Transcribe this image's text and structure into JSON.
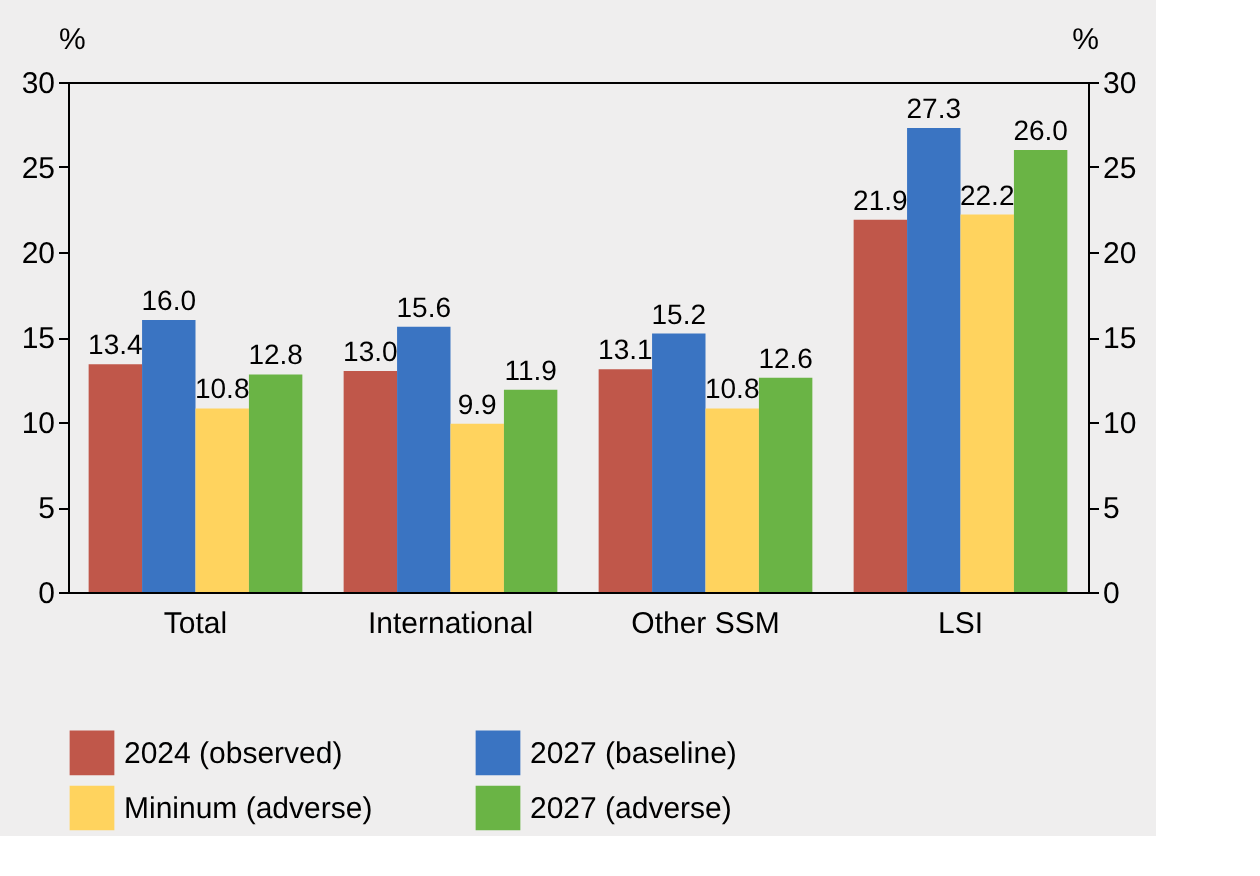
{
  "chart_data": {
    "type": "bar",
    "categories": [
      "Total",
      "International",
      "Other SSM",
      "LSI"
    ],
    "series": [
      {
        "name": "2024 (observed)",
        "color": "#c0574a",
        "values": [
          13.4,
          13.0,
          13.1,
          21.9
        ],
        "value_labels": [
          "13.4",
          "13.0",
          "13.1",
          "21.9"
        ]
      },
      {
        "name": "2027 (baseline)",
        "color": "#3a74c2",
        "values": [
          16.0,
          15.6,
          15.2,
          27.3
        ],
        "value_labels": [
          "16.0",
          "15.6",
          "15.2",
          "27.3"
        ]
      },
      {
        "name": "Mininum (adverse)",
        "color": "#ffd35e",
        "values": [
          10.8,
          9.9,
          10.8,
          22.2
        ],
        "value_labels": [
          "10.8",
          "9.9",
          "10.8",
          "22.2"
        ]
      },
      {
        "name": "2027 (adverse)",
        "color": "#6ab445",
        "values": [
          12.8,
          11.9,
          12.6,
          26.0
        ],
        "value_labels": [
          "12.8",
          "11.9",
          "12.6",
          "26.0"
        ]
      }
    ],
    "ylabel": "%",
    "y2label": "%",
    "ylim": [
      0,
      30
    ],
    "yticks": [
      0,
      5,
      10,
      15,
      20,
      25,
      30
    ],
    "y2lim": [
      0,
      30
    ],
    "y2ticks": [
      0,
      5,
      10,
      15,
      20,
      25,
      30
    ],
    "grid": false,
    "legend": "bottom"
  }
}
